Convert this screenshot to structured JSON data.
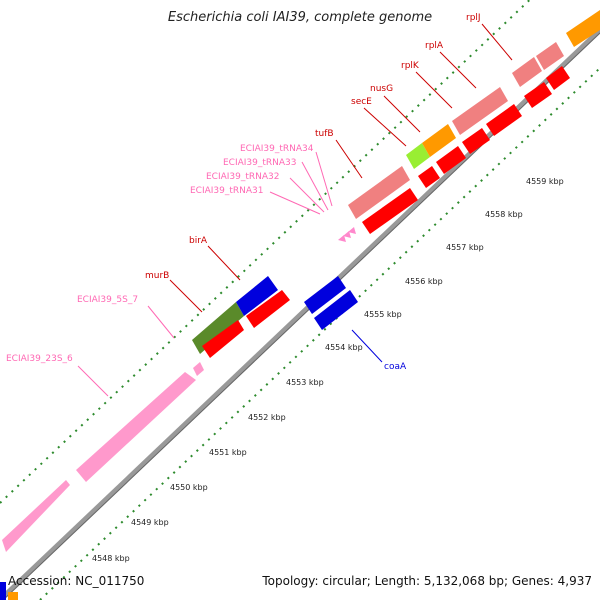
{
  "title": "Escherichia coli IAI39, complete genome",
  "footer": {
    "accession": "Accession: NC_011750",
    "summary": "Topology: circular; Length: 5,132,068 bp; Genes: 4,937"
  },
  "colors": {
    "gene_label": "#cc0000",
    "rna_label": "#ff69b4",
    "cds_red": "#ff0000",
    "cds_light_red": "#f08080",
    "cds_blue": "#0000dd",
    "cds_orange": "#ff9900",
    "cds_green": "#5a8a2a",
    "cds_lime": "#99ee33",
    "rrna_pink": "#ff99cc",
    "tick_green": "#2e8b2e",
    "backbone": "#999999"
  },
  "scale_labels": [
    "4548 kbp",
    "4549 kbp",
    "4550 kbp",
    "4551 kbp",
    "4552 kbp",
    "4553 kbp",
    "4554 kbp",
    "4555 kbp",
    "4556 kbp",
    "4557 kbp",
    "4558 kbp",
    "4559 kbp"
  ],
  "feature_labels": [
    {
      "text": "rplJ",
      "kind": "gene"
    },
    {
      "text": "rplA",
      "kind": "gene"
    },
    {
      "text": "rplK",
      "kind": "gene"
    },
    {
      "text": "nusG",
      "kind": "gene"
    },
    {
      "text": "secE",
      "kind": "gene"
    },
    {
      "text": "tufB",
      "kind": "gene"
    },
    {
      "text": "ECIAI39_tRNA34",
      "kind": "rna"
    },
    {
      "text": "ECIAI39_tRNA33",
      "kind": "rna"
    },
    {
      "text": "ECIAI39_tRNA32",
      "kind": "rna"
    },
    {
      "text": "ECIAI39_tRNA31",
      "kind": "rna"
    },
    {
      "text": "birA",
      "kind": "gene"
    },
    {
      "text": "murB",
      "kind": "gene"
    },
    {
      "text": "ECIAI39_5S_7",
      "kind": "rna"
    },
    {
      "text": "ECIAI39_23S_6",
      "kind": "rna"
    },
    {
      "text": "coaA",
      "kind": "gene_reverse"
    }
  ]
}
